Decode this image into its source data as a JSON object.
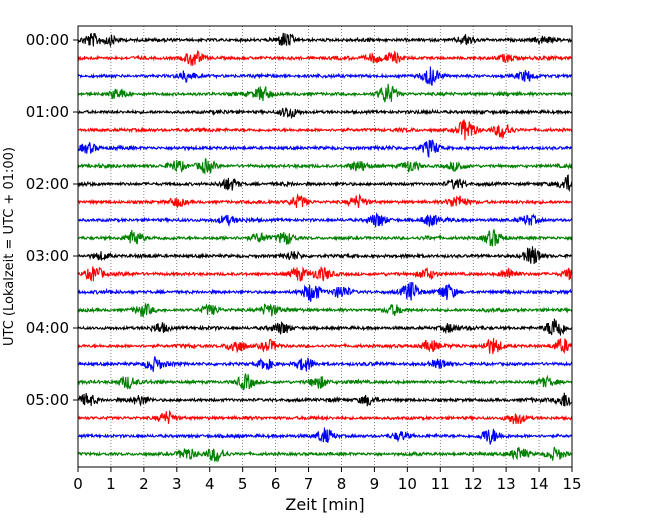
{
  "chart_data": {
    "type": "line",
    "xlabel": "Zeit  [min]",
    "ylabel": "UTC (Lokalzeit = UTC + 01:00)",
    "xlim": [
      0,
      15
    ],
    "x_ticks": [
      0,
      1,
      2,
      3,
      4,
      5,
      6,
      7,
      8,
      9,
      10,
      11,
      12,
      13,
      14,
      15
    ],
    "x_tick_labels": [
      "0",
      "1",
      "2",
      "3",
      "4",
      "5",
      "6",
      "7",
      "8",
      "9",
      "10",
      "11",
      "12",
      "13",
      "14",
      "15"
    ],
    "y_tick_labels": [
      "00:00",
      "01:00",
      "02:00",
      "03:00",
      "04:00",
      "05:00"
    ],
    "y_tick_trace_index": [
      0,
      4,
      8,
      12,
      16,
      20
    ],
    "vertical_grid": true,
    "trace_count": 24,
    "trace_colors": [
      "#000000",
      "#ff0000",
      "#0000ff",
      "#008000"
    ],
    "events": [
      [
        [
          0.4,
          1.0
        ],
        [
          1.0,
          0.7
        ],
        [
          6.3,
          1.2
        ],
        [
          11.8,
          0.8
        ],
        [
          14.1,
          0.6
        ]
      ],
      [
        [
          3.5,
          1.3
        ],
        [
          9.0,
          0.7
        ],
        [
          9.6,
          0.8
        ],
        [
          13.0,
          0.6
        ]
      ],
      [
        [
          3.3,
          0.9
        ],
        [
          10.7,
          1.5
        ],
        [
          13.6,
          0.7
        ]
      ],
      [
        [
          1.2,
          0.8
        ],
        [
          5.6,
          1.2
        ],
        [
          9.4,
          1.6
        ]
      ],
      [
        [
          6.4,
          0.9
        ]
      ],
      [
        [
          11.8,
          1.8
        ],
        [
          12.9,
          1.3
        ]
      ],
      [
        [
          0.3,
          0.8
        ],
        [
          10.7,
          1.3
        ]
      ],
      [
        [
          3.0,
          0.9
        ],
        [
          3.9,
          1.1
        ],
        [
          8.5,
          0.8
        ],
        [
          10.1,
          0.9
        ],
        [
          11.5,
          0.7
        ]
      ],
      [
        [
          4.6,
          1.0
        ],
        [
          11.5,
          0.8
        ],
        [
          14.9,
          1.3
        ]
      ],
      [
        [
          3.0,
          0.7
        ],
        [
          6.7,
          1.0
        ],
        [
          8.5,
          1.0
        ],
        [
          11.5,
          1.0
        ]
      ],
      [
        [
          4.5,
          0.7
        ],
        [
          9.1,
          1.1
        ],
        [
          10.7,
          0.9
        ],
        [
          13.7,
          0.8
        ]
      ],
      [
        [
          1.7,
          1.2
        ],
        [
          5.5,
          0.7
        ],
        [
          6.3,
          1.0
        ],
        [
          12.6,
          1.3
        ]
      ],
      [
        [
          0.7,
          0.6
        ],
        [
          6.5,
          0.7
        ],
        [
          13.8,
          1.5
        ]
      ],
      [
        [
          0.5,
          1.2
        ],
        [
          6.7,
          1.1
        ],
        [
          7.4,
          1.0
        ],
        [
          10.6,
          0.9
        ],
        [
          13.1,
          0.8
        ],
        [
          15.0,
          1.0
        ]
      ],
      [
        [
          7.1,
          1.4
        ],
        [
          8.0,
          1.0
        ],
        [
          10.1,
          1.6
        ],
        [
          11.2,
          1.3
        ]
      ],
      [
        [
          2.0,
          1.0
        ],
        [
          4.0,
          0.8
        ],
        [
          5.8,
          1.0
        ],
        [
          9.6,
          0.8
        ]
      ],
      [
        [
          2.5,
          0.8
        ],
        [
          6.2,
          0.9
        ],
        [
          11.3,
          0.7
        ],
        [
          14.5,
          1.8
        ]
      ],
      [
        [
          4.8,
          1.1
        ],
        [
          5.8,
          0.9
        ],
        [
          10.7,
          0.9
        ],
        [
          12.6,
          1.3
        ],
        [
          14.7,
          1.1
        ]
      ],
      [
        [
          2.3,
          1.1
        ],
        [
          5.7,
          0.8
        ],
        [
          6.9,
          1.1
        ],
        [
          11.0,
          0.7
        ]
      ],
      [
        [
          1.5,
          1.0
        ],
        [
          5.1,
          1.2
        ],
        [
          7.3,
          1.0
        ],
        [
          14.2,
          0.7
        ]
      ],
      [
        [
          0.3,
          1.0
        ],
        [
          1.9,
          0.7
        ],
        [
          8.8,
          0.8
        ],
        [
          14.8,
          1.2
        ]
      ],
      [
        [
          2.7,
          1.0
        ],
        [
          13.3,
          0.8
        ]
      ],
      [
        [
          7.5,
          1.2
        ],
        [
          9.8,
          0.7
        ],
        [
          12.5,
          1.2
        ]
      ],
      [
        [
          3.3,
          1.0
        ],
        [
          4.2,
          1.1
        ],
        [
          13.4,
          1.0
        ],
        [
          14.5,
          1.0
        ]
      ]
    ]
  }
}
